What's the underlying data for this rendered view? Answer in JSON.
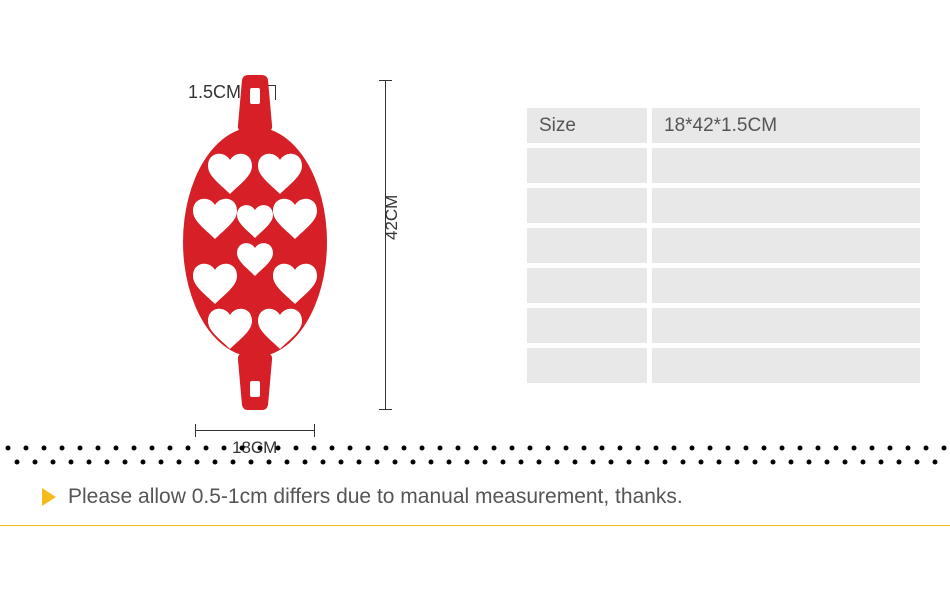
{
  "product": {
    "color": "#d61f26",
    "dimensions": {
      "height_label": "1.5CM",
      "height_text": "42CM",
      "width_text": "18CM"
    }
  },
  "table": {
    "rows": [
      {
        "label": "Size",
        "value": "18*42*1.5CM"
      },
      {
        "label": "",
        "value": ""
      },
      {
        "label": "",
        "value": ""
      },
      {
        "label": "",
        "value": ""
      },
      {
        "label": "",
        "value": ""
      },
      {
        "label": "",
        "value": ""
      },
      {
        "label": "",
        "value": ""
      }
    ],
    "cell_bg": "#e8e8e8",
    "text_color": "#555555"
  },
  "dots": {
    "color": "#000000",
    "radius": 2.5,
    "spacing": 18
  },
  "note": {
    "triangle_color": "#f5ba1c",
    "text": "Please allow 0.5-1cm differs due to manual measurement, thanks."
  },
  "line_color": "#f5ba1c"
}
